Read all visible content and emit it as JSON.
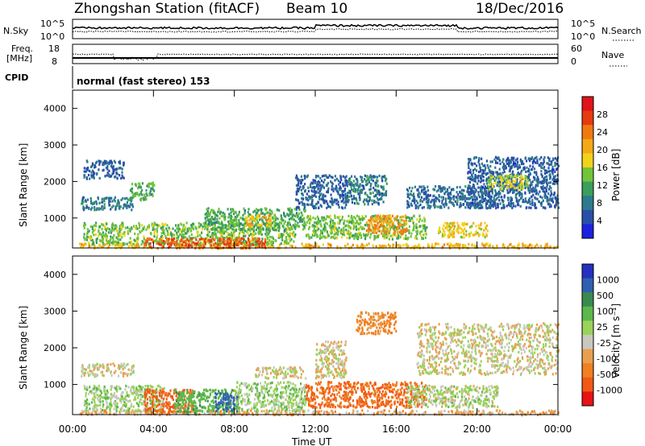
{
  "header": {
    "station": "Zhongshan Station (fitACF)",
    "beam": "Beam 10",
    "date": "18/Dec/2016"
  },
  "noise_panel": {
    "left_label": "N.Sky",
    "right_label": "N.Search",
    "left_ticks": [
      "10^5",
      "10^0"
    ],
    "right_ticks": [
      "10^5",
      "10^0"
    ]
  },
  "freq_panel": {
    "left_label_1": "Freq.",
    "left_label_2": "[MHz]",
    "left_ticks": [
      "18",
      "8"
    ],
    "right_label": "Nave",
    "right_ticks": [
      "60",
      "0"
    ]
  },
  "cpid_panel": {
    "label": "CPID",
    "mode_text": "normal (fast stereo) 153"
  },
  "power_panel": {
    "ylabel": "Slant Range [km]",
    "yticks": [
      "4000",
      "3000",
      "2000",
      "1000"
    ],
    "colorbar_label": "Power [dB]",
    "colorbar_ticks": [
      "28",
      "24",
      "20",
      "16",
      "12",
      "8",
      "4"
    ],
    "colors": [
      "#e0141a",
      "#e83a10",
      "#f07a10",
      "#f4a818",
      "#f2d21a",
      "#72c43a",
      "#3a9e5c",
      "#2d7a8e",
      "#2a4fa8",
      "#1a22e0"
    ]
  },
  "velocity_panel": {
    "ylabel": "Slant Range [km]",
    "yticks": [
      "4000",
      "3000",
      "2000",
      "1000"
    ],
    "colorbar_label": "Velocity [m s⁻¹]",
    "colorbar_ticks": [
      "1000",
      "500",
      "100",
      "25",
      "-25",
      "-100",
      "-500",
      "-1000"
    ],
    "colors": [
      "#2530c0",
      "#2f60b0",
      "#3a8a50",
      "#5cb84a",
      "#9bd25a",
      "#c8c8c0",
      "#e8a050",
      "#f08020",
      "#f05a14",
      "#e81414"
    ]
  },
  "xaxis": {
    "ticks": [
      "00:00",
      "04:00",
      "08:00",
      "12:00",
      "16:00",
      "20:00",
      "00:00"
    ],
    "label": "Time UT"
  },
  "chart_data": {
    "type": "heatmap",
    "x_range_hours": [
      0,
      24
    ],
    "y_range_km": [
      180,
      4500
    ],
    "power_range_db": [
      0,
      32
    ],
    "velocity_range_ms": [
      -1000,
      1000
    ],
    "power_clusters": [
      {
        "t0": 0.3,
        "t1": 24,
        "r0": 200,
        "r1": 330,
        "v": 20
      },
      {
        "t0": 0.5,
        "t1": 11,
        "r0": 300,
        "r1": 900,
        "v": 14
      },
      {
        "t0": 3.5,
        "t1": 9.5,
        "r0": 200,
        "r1": 480,
        "v": 26
      },
      {
        "t0": 0.4,
        "t1": 3.0,
        "r0": 1250,
        "r1": 1600,
        "v": 8
      },
      {
        "t0": 2.8,
        "t1": 4.0,
        "r0": 1500,
        "r1": 2000,
        "v": 12
      },
      {
        "t0": 6.5,
        "t1": 11.5,
        "r0": 700,
        "r1": 1300,
        "v": 12
      },
      {
        "t0": 8.5,
        "t1": 9.8,
        "r0": 800,
        "r1": 1100,
        "v": 20
      },
      {
        "t0": 11.5,
        "t1": 17.5,
        "r0": 450,
        "r1": 1100,
        "v": 14
      },
      {
        "t0": 14.5,
        "t1": 16.5,
        "r0": 600,
        "r1": 1100,
        "v": 22
      },
      {
        "t0": 11.0,
        "t1": 13.5,
        "r0": 1300,
        "r1": 2200,
        "v": 6
      },
      {
        "t0": 13.5,
        "t1": 15.5,
        "r0": 1400,
        "r1": 2200,
        "v": 8
      },
      {
        "t0": 16.5,
        "t1": 21.0,
        "r0": 1300,
        "r1": 1900,
        "v": 7
      },
      {
        "t0": 18.0,
        "t1": 20.5,
        "r0": 500,
        "r1": 900,
        "v": 18
      },
      {
        "t0": 19.5,
        "t1": 24.0,
        "r0": 1300,
        "r1": 2700,
        "v": 6
      },
      {
        "t0": 20.5,
        "t1": 22.5,
        "r0": 1800,
        "r1": 2200,
        "v": 16
      },
      {
        "t0": 0.5,
        "t1": 2.5,
        "r0": 2100,
        "r1": 2600,
        "v": 6
      }
    ],
    "velocity_clusters": [
      {
        "t0": 0.3,
        "t1": 24,
        "r0": 200,
        "r1": 330,
        "v": -60
      },
      {
        "t0": 0.5,
        "t1": 4.5,
        "r0": 300,
        "r1": 1000,
        "v": 60
      },
      {
        "t0": 3.5,
        "t1": 6.0,
        "r0": 250,
        "r1": 900,
        "v": -300
      },
      {
        "t0": 5.0,
        "t1": 8.0,
        "r0": 250,
        "r1": 900,
        "v": 200
      },
      {
        "t0": 7.0,
        "t1": 8.2,
        "r0": 300,
        "r1": 800,
        "v": 800
      },
      {
        "t0": 8.0,
        "t1": 11.5,
        "r0": 300,
        "r1": 1100,
        "v": 60
      },
      {
        "t0": 0.4,
        "t1": 3.0,
        "r0": 1250,
        "r1": 1600,
        "v": 0
      },
      {
        "t0": 11.5,
        "t1": 17.5,
        "r0": 400,
        "r1": 1100,
        "v": -250
      },
      {
        "t0": 12.0,
        "t1": 13.5,
        "r0": 1200,
        "r1": 2200,
        "v": 0
      },
      {
        "t0": 14.0,
        "t1": 16.0,
        "r0": 2400,
        "r1": 3000,
        "v": -150
      },
      {
        "t0": 16.5,
        "t1": 21.0,
        "r0": 400,
        "r1": 1000,
        "v": 40
      },
      {
        "t0": 17.0,
        "t1": 24.0,
        "r0": 1300,
        "r1": 2700,
        "v": 0
      },
      {
        "t0": 9.0,
        "t1": 11.5,
        "r0": 1200,
        "r1": 1500,
        "v": 0
      }
    ]
  }
}
